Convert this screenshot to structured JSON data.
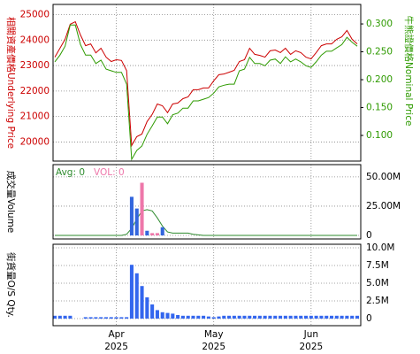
{
  "chart_data": [
    {
      "type": "line",
      "ylabel": "相關資產價格Underlying Price",
      "y2label": "牛熊證價格Nominal Price",
      "ylim": [
        19250,
        25400
      ],
      "yticks": [
        20000,
        21000,
        22000,
        23000,
        24000,
        25000
      ],
      "y2lim": [
        0.054,
        0.335
      ],
      "y2ticks": [
        {
          "value": 0.1,
          "label": "0.100"
        },
        {
          "value": 0.15,
          "label": "0.150"
        },
        {
          "value": 0.2,
          "label": "0.200"
        },
        {
          "value": 0.25,
          "label": "0.250"
        },
        {
          "value": 0.3,
          "label": "0.300"
        }
      ],
      "grid": true,
      "series": [
        {
          "color": "#cc0000",
          "values": [
            23330,
            23680,
            24030,
            24620,
            24720,
            24200,
            23780,
            23850,
            23500,
            23680,
            23330,
            23160,
            23230,
            23200,
            22800,
            19860,
            20210,
            20310,
            20800,
            21080,
            21490,
            21420,
            21150,
            21490,
            21530,
            21700,
            21770,
            22050,
            22050,
            22120,
            22120,
            22400,
            22640,
            22670,
            22740,
            22810,
            23160,
            23230,
            23680,
            23440,
            23400,
            23330,
            23580,
            23610,
            23510,
            23680,
            23440,
            23580,
            23510,
            23330,
            23260,
            23510,
            23780,
            23850,
            23850,
            24030,
            24130,
            24380,
            24030,
            23850
          ]
        },
        {
          "color": "#2e9a00",
          "axis": "y2",
          "values": [
            0.232,
            0.244,
            0.26,
            0.298,
            0.298,
            0.263,
            0.244,
            0.244,
            0.229,
            0.235,
            0.219,
            0.216,
            0.213,
            0.213,
            0.192,
            0.057,
            0.073,
            0.081,
            0.102,
            0.117,
            0.133,
            0.133,
            0.121,
            0.137,
            0.14,
            0.149,
            0.149,
            0.162,
            0.162,
            0.165,
            0.168,
            0.176,
            0.187,
            0.19,
            0.192,
            0.192,
            0.216,
            0.219,
            0.24,
            0.229,
            0.229,
            0.225,
            0.235,
            0.237,
            0.229,
            0.241,
            0.232,
            0.237,
            0.232,
            0.225,
            0.222,
            0.232,
            0.244,
            0.251,
            0.251,
            0.257,
            0.263,
            0.276,
            0.267,
            0.26
          ]
        }
      ]
    },
    {
      "type": "bar",
      "ylabel": "成交量Volume",
      "ylim": [
        -3,
        60.5
      ],
      "yticks": [
        0,
        {
          "value": 25,
          "label": "25.00M"
        },
        {
          "value": 50,
          "label": "50.00M"
        }
      ],
      "grid": true,
      "series": [
        {
          "name": "Avg: 0",
          "color": "#2e8b2e",
          "type": "line",
          "values": [
            0,
            0,
            0,
            0,
            0,
            0,
            0,
            0,
            0,
            0,
            0,
            0,
            0,
            0,
            1,
            6,
            14,
            21,
            22,
            21,
            15,
            8,
            3,
            2,
            2,
            2,
            2,
            1,
            0.5,
            0,
            0,
            0,
            0,
            0,
            0,
            0,
            0,
            0,
            0,
            0,
            0,
            0,
            0,
            0,
            0,
            0,
            0,
            0,
            0,
            0,
            0,
            0,
            0,
            0,
            0,
            0,
            0,
            0,
            0,
            0
          ]
        },
        {
          "name": "VOL: 0",
          "color": "#ee77aa",
          "type": "bar",
          "values": [
            0,
            0,
            0,
            0,
            0,
            0,
            0,
            0,
            0,
            0,
            0,
            0,
            0,
            0,
            0,
            33,
            23,
            45,
            4,
            2,
            2,
            7,
            0,
            0,
            0,
            0,
            0,
            0,
            0,
            0,
            0,
            0,
            0,
            0,
            0,
            0,
            0,
            0,
            0,
            0,
            0,
            0,
            0,
            0,
            0,
            0,
            0,
            0,
            0,
            0,
            0,
            0,
            0,
            0,
            0,
            0,
            0,
            0,
            0,
            0
          ],
          "colors": {
            "15": "#3366dd",
            "16": "#3366dd",
            "17": "#ee77aa",
            "18": "#3366dd",
            "19": "#ee77aa",
            "20": "#ee77aa",
            "21": "#3366dd"
          }
        }
      ]
    },
    {
      "type": "bar",
      "ylabel": "街貨量O/S Qty.",
      "ylim": [
        -1,
        10.5
      ],
      "yticks": [
        0,
        {
          "value": 2.5,
          "label": "2.5M"
        },
        {
          "value": 5,
          "label": "5.0M"
        },
        {
          "value": 7.5,
          "label": "7.5M"
        },
        {
          "value": 10,
          "label": "10.0M"
        }
      ],
      "grid": true,
      "categories": [
        null,
        null,
        null,
        null,
        null,
        null,
        null,
        null,
        null,
        null,
        null,
        null,
        "Apr\n2025",
        null,
        null,
        null,
        null,
        null,
        null,
        null,
        null,
        null,
        null,
        null,
        null,
        null,
        null,
        null,
        null,
        null,
        null,
        "May\n2025",
        null,
        null,
        null,
        null,
        null,
        null,
        null,
        null,
        null,
        null,
        null,
        null,
        null,
        null,
        null,
        null,
        null,
        null,
        "Jun\n2025",
        null,
        null,
        null,
        null,
        null,
        null,
        null,
        null,
        null
      ],
      "series": [
        {
          "color": "#3366ee",
          "type": "bar",
          "values": [
            0.4,
            0.4,
            0.4,
            0.4,
            0,
            0,
            0.2,
            0.2,
            0.2,
            0.2,
            0.2,
            0.2,
            0.2,
            0.2,
            0.2,
            7.6,
            6.4,
            4.6,
            3,
            2,
            1.2,
            0.9,
            0.8,
            0.7,
            0.5,
            0.4,
            0.4,
            0.4,
            0.4,
            0.4,
            0.3,
            0.2,
            0.3,
            0.4,
            0.4,
            0.4,
            0.4,
            0.4,
            0.4,
            0.4,
            0.4,
            0.4,
            0.4,
            0.4,
            0.4,
            0.4,
            0.4,
            0.4,
            0.4,
            0.4,
            0.4,
            0.4,
            0.4,
            0.4,
            0.4,
            0.4,
            0.4,
            0.4,
            0.4,
            0.4
          ]
        }
      ]
    }
  ]
}
